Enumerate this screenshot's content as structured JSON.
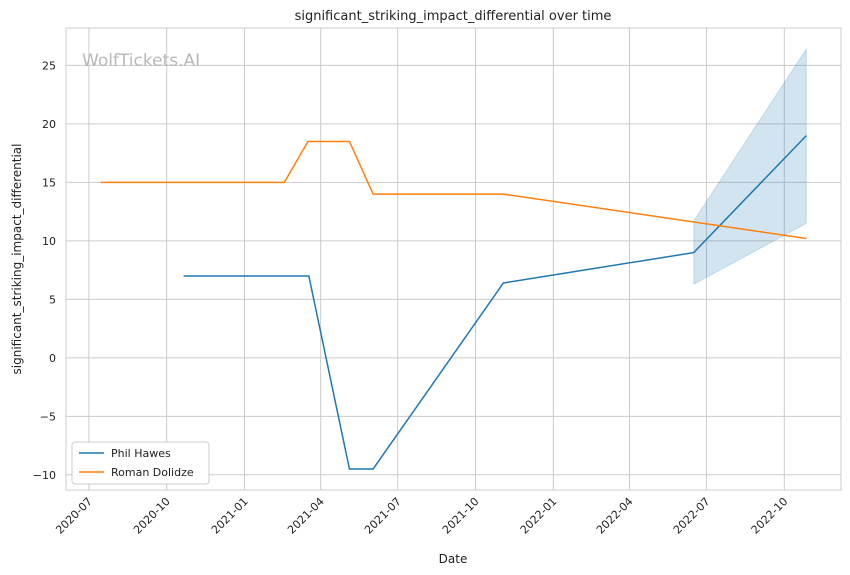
{
  "chart_data": {
    "type": "line",
    "title": "significant_striking_impact_differential over time",
    "xlabel": "Date",
    "ylabel": "significant_striking_impact_differential",
    "watermark": "WolfTickets.AI",
    "xlim": [
      "2020-06-04",
      "2022-12-07"
    ],
    "ylim": [
      -11.3,
      28.2
    ],
    "x_ticks": [
      "2020-07",
      "2020-10",
      "2021-01",
      "2021-04",
      "2021-07",
      "2021-10",
      "2022-01",
      "2022-04",
      "2022-07",
      "2022-10"
    ],
    "y_ticks": [
      -10,
      -5,
      0,
      5,
      10,
      15,
      20,
      25
    ],
    "grid": true,
    "legend_position": "bottom-left",
    "series": [
      {
        "name": "Phil Hawes",
        "color": "#1f77b4",
        "x": [
          "2020-10-21",
          "2021-03-18",
          "2021-05-05",
          "2021-06-02",
          "2021-11-03",
          "2022-06-16",
          "2022-10-27"
        ],
        "y": [
          7,
          7,
          -9.5,
          -9.5,
          6.4,
          9.0,
          19.0
        ],
        "ci_band": {
          "x": [
            "2022-06-16",
            "2022-10-27"
          ],
          "lower": [
            6.3,
            11.5
          ],
          "upper": [
            11.7,
            26.4
          ]
        }
      },
      {
        "name": "Roman Dolidze",
        "color": "#ff7f0e",
        "x": [
          "2020-07-15",
          "2021-02-17",
          "2021-03-17",
          "2021-05-05",
          "2021-06-02",
          "2021-11-03",
          "2022-10-27"
        ],
        "y": [
          15,
          15,
          18.5,
          18.5,
          14,
          14,
          10.2
        ]
      }
    ]
  }
}
